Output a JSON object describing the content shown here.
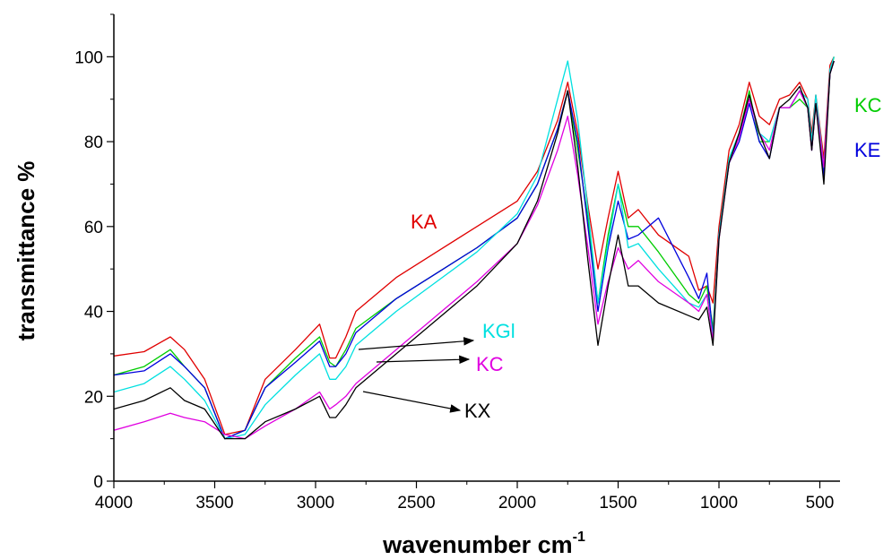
{
  "chart_data": {
    "type": "line",
    "xlabel_main": "wavenumber cm",
    "xlabel_sup": "-1",
    "ylabel": "transmittance %",
    "xlim": [
      4000,
      400
    ],
    "ylim": [
      0,
      110
    ],
    "xticks": [
      "4000",
      "3500",
      "3000",
      "2500",
      "2000",
      "1500",
      "1000",
      "500"
    ],
    "yticks": [
      "0",
      "20",
      "40",
      "60",
      "80",
      "100"
    ],
    "grid": false,
    "series": [
      {
        "name": "KA",
        "color": "#e00000",
        "points": [
          [
            4000,
            29.5
          ],
          [
            3850,
            30.5
          ],
          [
            3720,
            34
          ],
          [
            3650,
            31
          ],
          [
            3550,
            24
          ],
          [
            3450,
            11
          ],
          [
            3350,
            12
          ],
          [
            3250,
            24
          ],
          [
            3100,
            31
          ],
          [
            2980,
            37
          ],
          [
            2930,
            29
          ],
          [
            2900,
            29
          ],
          [
            2850,
            34
          ],
          [
            2800,
            40
          ],
          [
            2600,
            48
          ],
          [
            2400,
            54
          ],
          [
            2200,
            60
          ],
          [
            2000,
            66
          ],
          [
            1900,
            73
          ],
          [
            1800,
            85
          ],
          [
            1750,
            94
          ],
          [
            1700,
            82
          ],
          [
            1650,
            65
          ],
          [
            1600,
            50
          ],
          [
            1550,
            62
          ],
          [
            1500,
            73
          ],
          [
            1450,
            62
          ],
          [
            1400,
            64
          ],
          [
            1300,
            58
          ],
          [
            1150,
            53
          ],
          [
            1100,
            45
          ],
          [
            1060,
            46
          ],
          [
            1030,
            42
          ],
          [
            1000,
            60
          ],
          [
            950,
            78
          ],
          [
            900,
            84
          ],
          [
            850,
            94
          ],
          [
            800,
            86
          ],
          [
            750,
            84
          ],
          [
            700,
            90
          ],
          [
            650,
            91
          ],
          [
            600,
            94
          ],
          [
            560,
            90
          ],
          [
            540,
            82
          ],
          [
            520,
            91
          ],
          [
            480,
            76
          ],
          [
            450,
            98
          ],
          [
            430,
            100
          ]
        ]
      },
      {
        "name": "KC",
        "color": "#00cc00",
        "points": [
          [
            4000,
            25
          ],
          [
            3850,
            27
          ],
          [
            3720,
            31
          ],
          [
            3650,
            27
          ],
          [
            3550,
            22
          ],
          [
            3450,
            10
          ],
          [
            3350,
            12
          ],
          [
            3250,
            22
          ],
          [
            3100,
            29
          ],
          [
            2980,
            34
          ],
          [
            2930,
            28
          ],
          [
            2900,
            27
          ],
          [
            2850,
            31
          ],
          [
            2800,
            36
          ],
          [
            2600,
            43
          ],
          [
            2400,
            49
          ],
          [
            2200,
            55
          ],
          [
            2000,
            62
          ],
          [
            1900,
            70
          ],
          [
            1800,
            83
          ],
          [
            1750,
            92
          ],
          [
            1700,
            78
          ],
          [
            1650,
            62
          ],
          [
            1600,
            42
          ],
          [
            1550,
            58
          ],
          [
            1500,
            70
          ],
          [
            1450,
            60
          ],
          [
            1400,
            60
          ],
          [
            1300,
            54
          ],
          [
            1150,
            44
          ],
          [
            1100,
            42
          ],
          [
            1060,
            46
          ],
          [
            1030,
            36
          ],
          [
            1000,
            58
          ],
          [
            950,
            76
          ],
          [
            900,
            82
          ],
          [
            850,
            92
          ],
          [
            800,
            80
          ],
          [
            750,
            80
          ],
          [
            700,
            88
          ],
          [
            650,
            88
          ],
          [
            600,
            90
          ],
          [
            560,
            88
          ],
          [
            540,
            80
          ],
          [
            520,
            89
          ],
          [
            480,
            74
          ],
          [
            450,
            96
          ],
          [
            430,
            100
          ]
        ]
      },
      {
        "name": "KE",
        "color": "#0000dd",
        "points": [
          [
            4000,
            25
          ],
          [
            3850,
            26
          ],
          [
            3720,
            30
          ],
          [
            3650,
            27
          ],
          [
            3550,
            22
          ],
          [
            3450,
            10
          ],
          [
            3350,
            12
          ],
          [
            3250,
            22
          ],
          [
            3100,
            28
          ],
          [
            2980,
            33
          ],
          [
            2930,
            27
          ],
          [
            2900,
            27
          ],
          [
            2850,
            30
          ],
          [
            2800,
            35
          ],
          [
            2600,
            43
          ],
          [
            2400,
            49
          ],
          [
            2200,
            55
          ],
          [
            2000,
            62
          ],
          [
            1900,
            70
          ],
          [
            1800,
            83
          ],
          [
            1750,
            92
          ],
          [
            1700,
            80
          ],
          [
            1650,
            60
          ],
          [
            1600,
            40
          ],
          [
            1550,
            55
          ],
          [
            1500,
            66
          ],
          [
            1450,
            57
          ],
          [
            1400,
            58
          ],
          [
            1300,
            62
          ],
          [
            1150,
            48
          ],
          [
            1100,
            43
          ],
          [
            1060,
            49
          ],
          [
            1030,
            34
          ],
          [
            1000,
            58
          ],
          [
            950,
            75
          ],
          [
            900,
            80
          ],
          [
            850,
            89
          ],
          [
            800,
            80
          ],
          [
            750,
            76
          ],
          [
            700,
            88
          ],
          [
            650,
            88
          ],
          [
            600,
            92
          ],
          [
            560,
            88
          ],
          [
            540,
            78
          ],
          [
            520,
            89
          ],
          [
            480,
            72
          ],
          [
            450,
            96
          ],
          [
            430,
            99
          ]
        ]
      },
      {
        "name": "KGl",
        "color": "#00e0e0",
        "points": [
          [
            4000,
            21
          ],
          [
            3850,
            23
          ],
          [
            3720,
            27
          ],
          [
            3650,
            24
          ],
          [
            3550,
            19
          ],
          [
            3450,
            10
          ],
          [
            3350,
            11
          ],
          [
            3250,
            18
          ],
          [
            3100,
            25
          ],
          [
            2980,
            30
          ],
          [
            2930,
            24
          ],
          [
            2900,
            24
          ],
          [
            2850,
            27
          ],
          [
            2800,
            32
          ],
          [
            2600,
            40
          ],
          [
            2400,
            47
          ],
          [
            2200,
            54
          ],
          [
            2000,
            63
          ],
          [
            1900,
            72
          ],
          [
            1800,
            90
          ],
          [
            1750,
            99
          ],
          [
            1700,
            85
          ],
          [
            1650,
            64
          ],
          [
            1600,
            42
          ],
          [
            1550,
            56
          ],
          [
            1500,
            70
          ],
          [
            1450,
            55
          ],
          [
            1400,
            56
          ],
          [
            1300,
            50
          ],
          [
            1150,
            42
          ],
          [
            1100,
            41
          ],
          [
            1060,
            44
          ],
          [
            1030,
            34
          ],
          [
            1000,
            58
          ],
          [
            950,
            76
          ],
          [
            900,
            82
          ],
          [
            850,
            90
          ],
          [
            800,
            82
          ],
          [
            750,
            80
          ],
          [
            700,
            88
          ],
          [
            650,
            88
          ],
          [
            600,
            92
          ],
          [
            560,
            90
          ],
          [
            540,
            80
          ],
          [
            520,
            91
          ],
          [
            480,
            74
          ],
          [
            450,
            97
          ],
          [
            430,
            100
          ]
        ]
      },
      {
        "name": "KC",
        "color": "#e000e0",
        "points": [
          [
            4000,
            12
          ],
          [
            3850,
            14
          ],
          [
            3720,
            16
          ],
          [
            3650,
            15
          ],
          [
            3550,
            14
          ],
          [
            3450,
            11
          ],
          [
            3350,
            10
          ],
          [
            3250,
            13
          ],
          [
            3100,
            17
          ],
          [
            2980,
            21
          ],
          [
            2930,
            17
          ],
          [
            2900,
            18
          ],
          [
            2850,
            20
          ],
          [
            2800,
            23
          ],
          [
            2600,
            31
          ],
          [
            2400,
            39
          ],
          [
            2200,
            47
          ],
          [
            2000,
            56
          ],
          [
            1900,
            65
          ],
          [
            1800,
            78
          ],
          [
            1750,
            86
          ],
          [
            1700,
            72
          ],
          [
            1650,
            55
          ],
          [
            1600,
            37
          ],
          [
            1550,
            47
          ],
          [
            1500,
            55
          ],
          [
            1450,
            50
          ],
          [
            1400,
            52
          ],
          [
            1300,
            47
          ],
          [
            1150,
            42
          ],
          [
            1100,
            40
          ],
          [
            1060,
            44
          ],
          [
            1030,
            33
          ],
          [
            1000,
            57
          ],
          [
            950,
            75
          ],
          [
            900,
            81
          ],
          [
            850,
            90
          ],
          [
            800,
            82
          ],
          [
            750,
            78
          ],
          [
            700,
            88
          ],
          [
            650,
            88
          ],
          [
            600,
            92
          ],
          [
            560,
            88
          ],
          [
            540,
            78
          ],
          [
            520,
            89
          ],
          [
            480,
            74
          ],
          [
            450,
            96
          ],
          [
            430,
            99
          ]
        ]
      },
      {
        "name": "KX",
        "color": "#000000",
        "points": [
          [
            4000,
            17
          ],
          [
            3850,
            19
          ],
          [
            3720,
            22
          ],
          [
            3650,
            19
          ],
          [
            3550,
            17
          ],
          [
            3450,
            10
          ],
          [
            3350,
            10
          ],
          [
            3250,
            14
          ],
          [
            3100,
            17
          ],
          [
            2980,
            20
          ],
          [
            2930,
            15
          ],
          [
            2900,
            15
          ],
          [
            2850,
            18
          ],
          [
            2800,
            22
          ],
          [
            2600,
            30
          ],
          [
            2400,
            38
          ],
          [
            2200,
            46
          ],
          [
            2000,
            56
          ],
          [
            1900,
            66
          ],
          [
            1800,
            82
          ],
          [
            1750,
            92
          ],
          [
            1700,
            74
          ],
          [
            1650,
            52
          ],
          [
            1600,
            32
          ],
          [
            1550,
            46
          ],
          [
            1500,
            58
          ],
          [
            1450,
            46
          ],
          [
            1400,
            46
          ],
          [
            1300,
            42
          ],
          [
            1150,
            39
          ],
          [
            1100,
            38
          ],
          [
            1060,
            41
          ],
          [
            1030,
            32
          ],
          [
            1000,
            57
          ],
          [
            950,
            75
          ],
          [
            900,
            82
          ],
          [
            850,
            91
          ],
          [
            800,
            82
          ],
          [
            750,
            76
          ],
          [
            700,
            88
          ],
          [
            650,
            90
          ],
          [
            600,
            93
          ],
          [
            560,
            88
          ],
          [
            540,
            78
          ],
          [
            520,
            89
          ],
          [
            480,
            70
          ],
          [
            450,
            96
          ],
          [
            430,
            99
          ]
        ]
      }
    ],
    "labels": [
      {
        "text": "KA",
        "color": "#e00000"
      },
      {
        "text": "KGl",
        "color": "#00e0e0"
      },
      {
        "text": "KC",
        "color": "#e000e0"
      },
      {
        "text": "KX",
        "color": "#000000"
      },
      {
        "text": "KC",
        "color": "#00cc00"
      },
      {
        "text": "KE",
        "color": "#0000dd"
      }
    ]
  }
}
